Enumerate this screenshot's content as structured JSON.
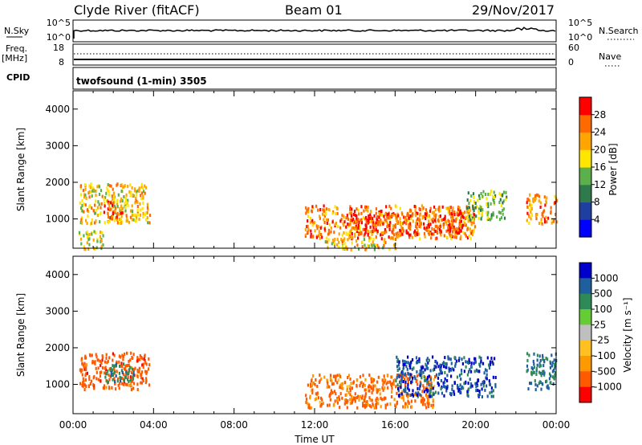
{
  "header": {
    "station": "Clyde River (fitACF)",
    "beam": "Beam 01",
    "date": "29/Nov/2017"
  },
  "status_panels": {
    "nsky_label": "N.Sky",
    "nsky_ticks": [
      "10^5",
      "10^0"
    ],
    "nsearch_label": "N.Search",
    "nsearch_ticks": [
      "10^5",
      "10^0"
    ],
    "freq_label_1": "Freq.",
    "freq_label_2": "[MHz]",
    "freq_ticks": [
      "18",
      "8"
    ],
    "nave_label": "Nave",
    "nave_ticks": [
      "60",
      "0"
    ],
    "cpid_label": "CPID",
    "cpid_value": "twofsound (1-min) 3505"
  },
  "colors": {
    "power_scale": [
      "#0000ff",
      "#1f3fa0",
      "#2f7a4a",
      "#5ab04a",
      "#ffe600",
      "#ffa500",
      "#ff6a00",
      "#ff0000"
    ],
    "velocity_scale": [
      "#ff0000",
      "#ff5a00",
      "#ff9900",
      "#ffc020",
      "#bfbfbf",
      "#66cc33",
      "#2e8b57",
      "#1f5fa0",
      "#0000cc"
    ]
  },
  "chart_data": [
    {
      "type": "heatmap",
      "name": "power",
      "xlabel": "",
      "ylabel": "Slant Range [km]",
      "xlim": [
        0,
        24
      ],
      "ylim": [
        200,
        4500
      ],
      "yticks": [
        "1000",
        "2000",
        "3000",
        "4000"
      ],
      "colorbar_label": "Power [dB]",
      "colorbar_ticks": [
        "4",
        "8",
        "12",
        "16",
        "20",
        "24",
        "28"
      ],
      "colorbar_range": [
        0,
        32
      ],
      "regions": [
        {
          "t0": 0.3,
          "t1": 3.8,
          "r0": 900,
          "r1": 2000,
          "value": 20
        },
        {
          "t0": 1.5,
          "t1": 2.5,
          "r0": 1000,
          "r1": 1500,
          "value": 26
        },
        {
          "t0": 0.2,
          "t1": 1.5,
          "r0": 200,
          "r1": 700,
          "value": 18
        },
        {
          "t0": 11.5,
          "t1": 20.0,
          "r0": 500,
          "r1": 1400,
          "value": 24
        },
        {
          "t0": 13.5,
          "t1": 19.5,
          "r0": 600,
          "r1": 1200,
          "value": 28
        },
        {
          "t0": 12.5,
          "t1": 16.0,
          "r0": 200,
          "r1": 500,
          "value": 20
        },
        {
          "t0": 19.5,
          "t1": 21.5,
          "r0": 1000,
          "r1": 1800,
          "value": 14
        },
        {
          "t0": 22.5,
          "t1": 24.0,
          "r0": 900,
          "r1": 1700,
          "value": 24
        }
      ]
    },
    {
      "type": "heatmap",
      "name": "velocity",
      "xlabel": "Time UT",
      "ylabel": "Slant Range [km]",
      "xlim": [
        0,
        24
      ],
      "ylim": [
        200,
        4500
      ],
      "xticks": [
        "00:00",
        "04:00",
        "08:00",
        "12:00",
        "16:00",
        "20:00",
        "00:00"
      ],
      "yticks": [
        "1000",
        "2000",
        "3000",
        "4000"
      ],
      "colorbar_label": "Velocity [m s⁻¹]",
      "colorbar_ticks": [
        "1000",
        "500",
        "100",
        "25",
        "-25",
        "-100",
        "-500",
        "-1000"
      ],
      "regions": [
        {
          "t0": 0.3,
          "t1": 3.8,
          "r0": 900,
          "r1": 1900,
          "value": -300
        },
        {
          "t0": 1.5,
          "t1": 3.0,
          "r0": 1100,
          "r1": 1600,
          "value": 400
        },
        {
          "t0": 11.5,
          "t1": 18.0,
          "r0": 400,
          "r1": 1300,
          "value": -150
        },
        {
          "t0": 16.0,
          "t1": 21.0,
          "r0": 700,
          "r1": 1800,
          "value": 900
        },
        {
          "t0": 22.5,
          "t1": 24.0,
          "r0": 900,
          "r1": 1900,
          "value": 600
        }
      ]
    }
  ]
}
